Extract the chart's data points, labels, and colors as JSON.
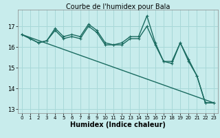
{
  "title": "Courbe de l'humidex pour Bala",
  "xlabel": "Humidex (Indice chaleur)",
  "bg_color": "#c8ecec",
  "grid_color": "#a8d8d8",
  "line_color": "#1a6b60",
  "xlim": [
    -0.5,
    23.5
  ],
  "ylim": [
    12.8,
    17.8
  ],
  "yticks": [
    13,
    14,
    15,
    16,
    17
  ],
  "xticks": [
    0,
    1,
    2,
    3,
    4,
    5,
    6,
    7,
    8,
    9,
    10,
    11,
    12,
    13,
    14,
    15,
    16,
    17,
    18,
    19,
    20,
    21,
    22,
    23
  ],
  "series1_x": [
    0,
    1,
    2,
    3,
    4,
    5,
    6,
    7,
    8,
    9,
    10,
    11,
    12,
    13,
    14,
    15,
    16,
    17,
    18,
    19,
    20,
    21,
    22,
    23
  ],
  "series1_y": [
    16.6,
    16.4,
    16.2,
    16.3,
    16.9,
    16.5,
    16.6,
    16.5,
    17.1,
    16.8,
    16.2,
    16.1,
    16.2,
    16.5,
    16.5,
    17.5,
    16.2,
    15.3,
    15.3,
    16.2,
    15.4,
    14.6,
    13.3,
    13.3
  ],
  "series2_x": [
    0,
    1,
    2,
    3,
    4,
    5,
    6,
    7,
    8,
    9,
    10,
    11,
    12,
    13,
    14,
    15,
    16,
    17,
    18,
    19,
    20,
    21,
    22,
    23
  ],
  "series2_y": [
    16.6,
    16.4,
    16.2,
    16.3,
    16.8,
    16.4,
    16.5,
    16.4,
    17.0,
    16.7,
    16.1,
    16.1,
    16.1,
    16.4,
    16.4,
    17.0,
    16.1,
    15.3,
    15.2,
    16.2,
    15.3,
    14.6,
    13.3,
    13.3
  ],
  "series3_x": [
    0,
    23
  ],
  "series3_y": [
    16.6,
    13.3
  ],
  "marker_size": 3,
  "line_width": 1.0,
  "label_fontsize": 7,
  "tick_fontsize": 6,
  "title_fontsize": 7
}
